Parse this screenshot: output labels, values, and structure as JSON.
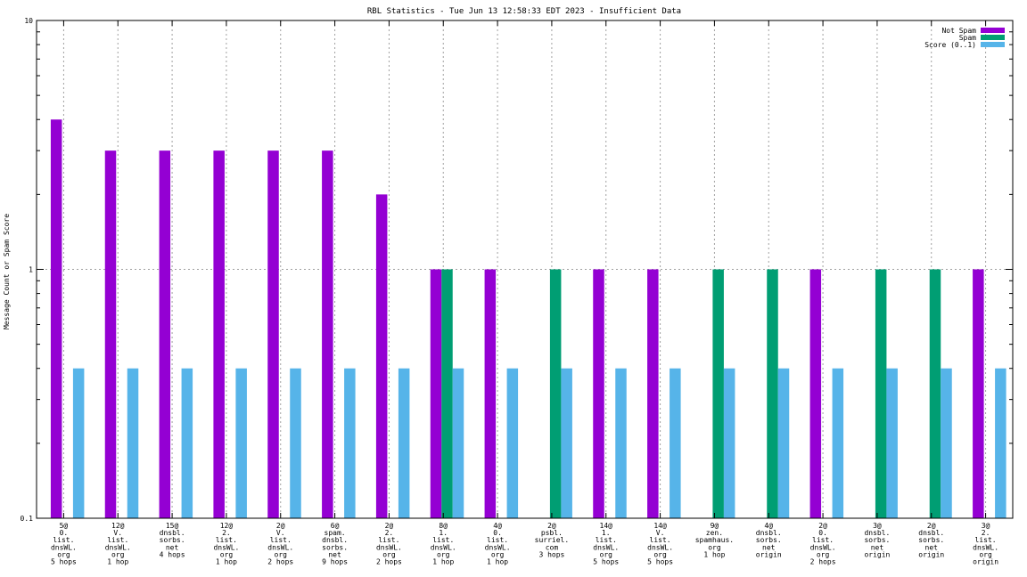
{
  "chart_data": {
    "type": "bar",
    "title": "RBL Statistics - Tue Jun 13 12:58:33 EDT 2023 - Insufficient Data",
    "xlabel": "",
    "ylabel": "Message Count or Spam Score",
    "yscale": "log",
    "ylim": [
      0.1,
      10
    ],
    "yticks": [
      "0.1",
      "1",
      "10"
    ],
    "grid": true,
    "legend_position": "top-right",
    "categories": [
      [
        "5@",
        "0.",
        "list.",
        "dnsWL.",
        "org",
        "5 hops"
      ],
      [
        "12@",
        "V.",
        "list.",
        "dnsWL.",
        "org",
        "1 hop"
      ],
      [
        "15@",
        "dnsbl.",
        "sorbs.",
        "net",
        "4 hops"
      ],
      [
        "12@",
        "2.",
        "list.",
        "dnsWL.",
        "org",
        "1 hop"
      ],
      [
        "2@",
        "V.",
        "list.",
        "dnsWL.",
        "org",
        "2 hops"
      ],
      [
        "6@",
        "spam.",
        "dnsbl.",
        "sorbs.",
        "net",
        "9 hops"
      ],
      [
        "2@",
        "2.",
        "list.",
        "dnsWL.",
        "org",
        "2 hops"
      ],
      [
        "8@",
        "1.",
        "list.",
        "dnsWL.",
        "org",
        "1 hop"
      ],
      [
        "4@",
        "0.",
        "list.",
        "dnsWL.",
        "org",
        "1 hop"
      ],
      [
        "2@",
        "psbl.",
        "surriel.",
        "com",
        "3 hops"
      ],
      [
        "14@",
        "1.",
        "list.",
        "dnsWL.",
        "org",
        "5 hops"
      ],
      [
        "14@",
        "V.",
        "list.",
        "dnsWL.",
        "org",
        "5 hops"
      ],
      [
        "9@",
        "zen.",
        "spamhaus.",
        "org",
        "1 hop"
      ],
      [
        "4@",
        "dnsbl.",
        "sorbs.",
        "net",
        "origin"
      ],
      [
        "2@",
        "0.",
        "list.",
        "dnsWL.",
        "org",
        "2 hops"
      ],
      [
        "3@",
        "dnsbl.",
        "sorbs.",
        "net",
        "origin"
      ],
      [
        "2@",
        "dnsbl.",
        "sorbs.",
        "net",
        "origin"
      ],
      [
        "3@",
        "2.",
        "list.",
        "dnsWL.",
        "org",
        "origin"
      ]
    ],
    "series": [
      {
        "name": "Not Spam",
        "color": "#9400d3",
        "values": [
          4,
          3,
          3,
          3,
          3,
          3,
          2,
          1,
          1,
          null,
          1,
          1,
          null,
          null,
          1,
          null,
          null,
          1
        ]
      },
      {
        "name": "Spam",
        "color": "#009e73",
        "values": [
          null,
          null,
          null,
          null,
          null,
          null,
          null,
          1,
          null,
          1,
          null,
          null,
          1,
          1,
          null,
          1,
          1,
          null
        ]
      },
      {
        "name": "Score (0..1)",
        "color": "#56b4e9",
        "values": [
          0.4,
          0.4,
          0.4,
          0.4,
          0.4,
          0.4,
          0.4,
          0.4,
          0.4,
          0.4,
          0.4,
          0.4,
          0.4,
          0.4,
          0.4,
          0.4,
          0.4,
          0.4
        ]
      }
    ]
  }
}
